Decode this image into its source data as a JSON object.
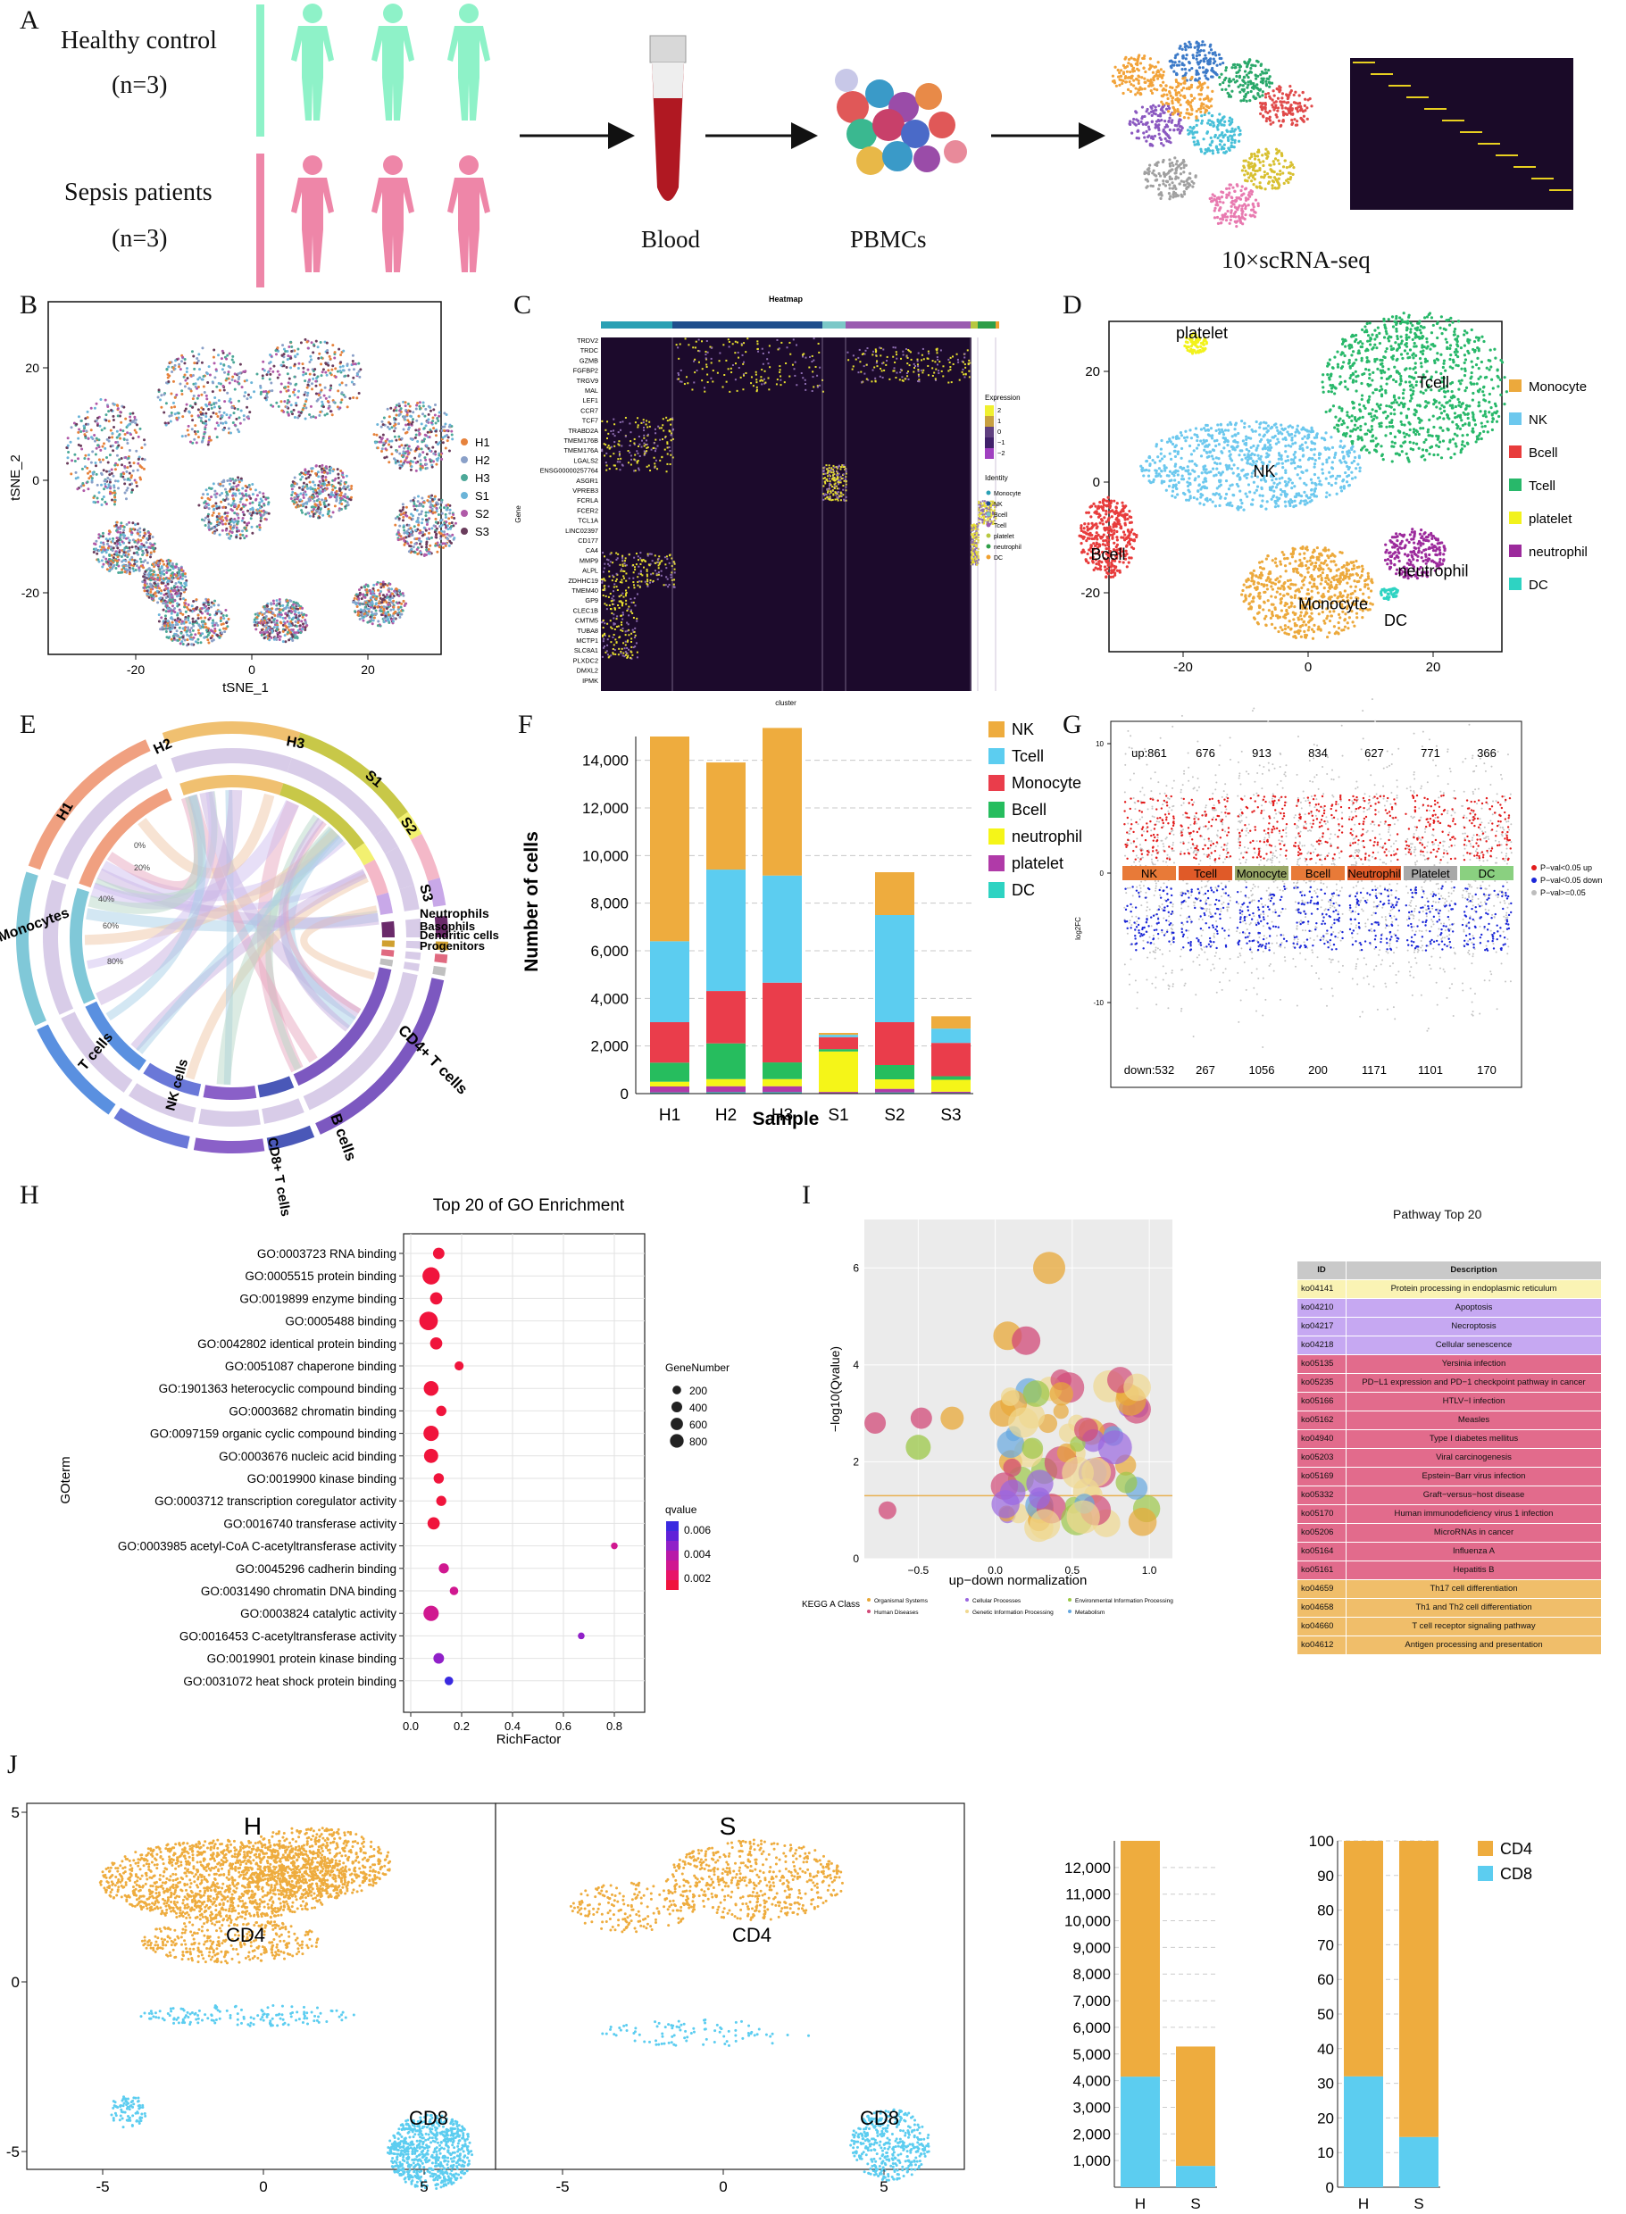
{
  "panels": {
    "A": "A",
    "B": "B",
    "C": "C",
    "D": "D",
    "E": "E",
    "F": "F",
    "G": "G",
    "H": "H",
    "I": "I",
    "J": "J"
  },
  "panelA": {
    "healthy_label": "Healthy control",
    "healthy_n": "(n=3)",
    "sepsis_label": "Sepsis patients",
    "sepsis_n": "(n=3)",
    "blood": "Blood",
    "pbmcs": "PBMCs",
    "scrna": "10×scRNA-seq",
    "colors": {
      "healthy": "#8ef2c8",
      "sepsis": "#ee86a8"
    }
  },
  "panelB": {
    "xlabel": "tSNE_1",
    "ylabel": "tSNE_2",
    "legend": [
      {
        "name": "H1",
        "color": "#e6823c"
      },
      {
        "name": "H2",
        "color": "#8aa0c8"
      },
      {
        "name": "H3",
        "color": "#4ca898"
      },
      {
        "name": "S1",
        "color": "#6bb4d8"
      },
      {
        "name": "S2",
        "color": "#b05aa8"
      },
      {
        "name": "S3",
        "color": "#6a3c5c"
      }
    ]
  },
  "panelC": {
    "title": "Heatmap",
    "xlabel": "cluster",
    "ylabel": "Gene",
    "genes": [
      "TRDV2",
      "TRDC",
      "GZMB",
      "FGFBP2",
      "TRGV9",
      "MAL",
      "LEF1",
      "CCR7",
      "TCF7",
      "TRABD2A",
      "TMEM176B",
      "TMEM176A",
      "LGALS2",
      "ENSG00000257764",
      "ASGR1",
      "VPREB3",
      "FCRLA",
      "FCER2",
      "TCL1A",
      "LINC02397",
      "CD177",
      "CA4",
      "MMP9",
      "ALPL",
      "ZDHHC19",
      "TMEM40",
      "GP9",
      "CLEC1B",
      "CMTM5",
      "TUBA8",
      "MCTP1",
      "SLC8A1",
      "PLXDC2",
      "DMXL2",
      "IPMK"
    ],
    "expression_label": "Expression",
    "expression_ticks": [
      "2",
      "1",
      "0",
      "−1",
      "−2"
    ],
    "identity_label": "Identity",
    "identity": [
      {
        "name": "Monocyte",
        "color": "#2aa0b4"
      },
      {
        "name": "NK",
        "color": "#1f4e8c"
      },
      {
        "name": "Bcell",
        "color": "#7cc8c8"
      },
      {
        "name": "Tcell",
        "color": "#9a5cb0"
      },
      {
        "name": "platelet",
        "color": "#b8c840"
      },
      {
        "name": "neutrophil",
        "color": "#2e9e48"
      },
      {
        "name": "DC",
        "color": "#f0a030"
      }
    ]
  },
  "panelD": {
    "legend": [
      {
        "name": "Monocyte",
        "color": "#eca93c"
      },
      {
        "name": "NK",
        "color": "#6cc8ee"
      },
      {
        "name": "Bcell",
        "color": "#e83c3c"
      },
      {
        "name": "Tcell",
        "color": "#28b86a"
      },
      {
        "name": "platelet",
        "color": "#f2f21c"
      },
      {
        "name": "neutrophil",
        "color": "#9c2a9c"
      },
      {
        "name": "DC",
        "color": "#2ed3c2"
      }
    ],
    "labels": {
      "platelet": "platelet",
      "tcell": "Tcell",
      "nk": "NK",
      "bcell": "Bcell",
      "monocyte": "Monocyte",
      "neutrophil": "neutrophil",
      "dc": "DC"
    }
  },
  "panelE": {
    "samples": [
      "H1",
      "H2",
      "H3",
      "S1",
      "S2",
      "S3"
    ],
    "cells": [
      "Neutrophils",
      "Basophils",
      "Dendritic cells",
      "Progenitors",
      "CD4+ T cells",
      "B cells",
      "CD8+ T cells",
      "NK cells",
      "T cells",
      "Monocytes"
    ],
    "pct_ticks": [
      "0%",
      "20%",
      "40%",
      "60%",
      "80%"
    ]
  },
  "chart_data": [
    {
      "panel": "B",
      "type": "scatter",
      "xlabel": "tSNE_1",
      "ylabel": "tSNE_2",
      "xticks": [
        -20,
        0,
        20
      ],
      "yticks": [
        20,
        0,
        -20
      ]
    },
    {
      "panel": "D",
      "type": "scatter",
      "xticks": [
        -20,
        0,
        20
      ],
      "yticks": [
        20,
        0,
        -20
      ]
    },
    {
      "panel": "F",
      "type": "bar",
      "stacked": true,
      "xlabel": "Sample",
      "ylabel": "Number of cells",
      "categories": [
        "H1",
        "H2",
        "H3",
        "S1",
        "S2",
        "S3"
      ],
      "ylim": [
        0,
        15000
      ],
      "yticks": [
        0,
        2000,
        4000,
        6000,
        8000,
        10000,
        12000,
        14000
      ],
      "ytick_labels": [
        "0",
        "2,000",
        "4,000",
        "6,000",
        "8,000",
        "10,000",
        "12,000",
        "14,000"
      ],
      "series": [
        {
          "name": "DC",
          "color": "#2ed3c2",
          "values": [
            50,
            60,
            60,
            20,
            50,
            30
          ]
        },
        {
          "name": "platelet",
          "color": "#b03aa8",
          "values": [
            250,
            250,
            250,
            50,
            150,
            50
          ]
        },
        {
          "name": "neutrophil",
          "color": "#f5f518",
          "values": [
            200,
            300,
            300,
            1700,
            400,
            500
          ]
        },
        {
          "name": "Bcell",
          "color": "#26bd5e",
          "values": [
            800,
            1500,
            700,
            100,
            600,
            150
          ]
        },
        {
          "name": "Monocyte",
          "color": "#ea3d4b",
          "values": [
            1700,
            2200,
            3350,
            500,
            1800,
            1400
          ]
        },
        {
          "name": "Tcell",
          "color": "#5ccdf0",
          "values": [
            3400,
            5100,
            4500,
            100,
            4500,
            600
          ]
        },
        {
          "name": "NK",
          "color": "#eeac3e",
          "values": [
            8600,
            4500,
            6200,
            80,
            1800,
            520
          ]
        }
      ],
      "legend_order": [
        "NK",
        "Tcell",
        "Monocyte",
        "Bcell",
        "neutrophil",
        "platelet",
        "DC"
      ]
    },
    {
      "panel": "G",
      "type": "scatter",
      "ylabel": "log2FC",
      "categories": [
        "NK",
        "Tcell",
        "Monocyte",
        "Bcell",
        "Neutrophil",
        "Platelet",
        "DC"
      ],
      "up": [
        861,
        676,
        913,
        834,
        627,
        771,
        366
      ],
      "down": [
        532,
        267,
        1056,
        200,
        1171,
        1101,
        170
      ],
      "up_labels": [
        "up:861",
        "676",
        "913",
        "834",
        "627",
        "771",
        "366"
      ],
      "down_labels": [
        "down:532",
        "267",
        "1056",
        "200",
        "1171",
        "1101",
        "170"
      ],
      "yticks": [
        10,
        0,
        -10
      ],
      "legend": [
        {
          "name": "P−val<0.05 up",
          "color": "#e21c1c"
        },
        {
          "name": "P−val<0.05 down",
          "color": "#1c28d8"
        },
        {
          "name": "P−val>=0.05",
          "color": "#bdbdbd"
        }
      ]
    },
    {
      "panel": "H",
      "type": "scatter",
      "title": "Top 20 of GO Enrichment",
      "xlabel": "RichFactor",
      "ylabel": "GOterm",
      "xlim": [
        0,
        0.85
      ],
      "xticks": [
        0.0,
        0.2,
        0.4,
        0.6,
        0.8
      ],
      "terms": [
        "GO:0003723 RNA binding",
        "GO:0005515 protein binding",
        "GO:0019899 enzyme binding",
        "GO:0005488 binding",
        "GO:0042802 identical protein binding",
        "GO:0051087 chaperone binding",
        "GO:1901363 heterocyclic compound binding",
        "GO:0003682 chromatin binding",
        "GO:0097159 organic cyclic compound binding",
        "GO:0003676 nucleic acid binding",
        "GO:0019900 kinase binding",
        "GO:0003712 transcription coregulator activity",
        "GO:0016740 transferase activity",
        "GO:0003985 acetyl-CoA C-acetyltransferase activity",
        "GO:0045296 cadherin binding",
        "GO:0031490 chromatin DNA binding",
        "GO:0003824 catalytic activity",
        "GO:0016453 C-acetyltransferase activity",
        "GO:0019901 protein kinase binding",
        "GO:0031072 heat shock protein binding"
      ],
      "richfactor": [
        0.11,
        0.08,
        0.1,
        0.07,
        0.1,
        0.19,
        0.08,
        0.12,
        0.08,
        0.08,
        0.11,
        0.12,
        0.09,
        0.8,
        0.13,
        0.17,
        0.08,
        0.67,
        0.11,
        0.15
      ],
      "genenumber": [
        250,
        750,
        300,
        900,
        300,
        120,
        500,
        180,
        550,
        450,
        180,
        170,
        300,
        40,
        170,
        100,
        550,
        40,
        200,
        100
      ],
      "qvalue": [
        0.001,
        0.001,
        0.001,
        0.001,
        0.001,
        0.002,
        0.001,
        0.002,
        0.001,
        0.001,
        0.002,
        0.002,
        0.002,
        0.004,
        0.003,
        0.003,
        0.003,
        0.005,
        0.006,
        0.007
      ],
      "size_legend_title": "GeneNumber",
      "size_legend": [
        200,
        400,
        600,
        800
      ],
      "color_legend_title": "qvalue",
      "color_legend": [
        "0.006",
        "0.004",
        "0.002"
      ]
    },
    {
      "panel": "I",
      "type": "scatter",
      "xlabel": "up−down normalization",
      "ylabel": "−log10(Qvalue)",
      "xticks": [
        "−0.5",
        "0.0",
        "0.5",
        "1.0"
      ],
      "yticks": [
        "0",
        "2",
        "4",
        "6"
      ],
      "threshold": 1.3,
      "legend_title": "KEGG A Class",
      "legend": [
        {
          "name": "Organismal Systems",
          "color": "#e8a838"
        },
        {
          "name": "Human Diseases",
          "color": "#d24a78"
        },
        {
          "name": "Cellular Processes",
          "color": "#9a66e0"
        },
        {
          "name": "Genetic Information Processing",
          "color": "#f0d890"
        },
        {
          "name": "Environmental Information Processing",
          "color": "#9cc848"
        },
        {
          "name": "Metabolism",
          "color": "#66a8e0"
        }
      ]
    },
    {
      "panel": "J-counts",
      "type": "bar",
      "stacked": true,
      "categories": [
        "H",
        "S"
      ],
      "ylim": [
        0,
        13000
      ],
      "yticks": [
        1000,
        2000,
        3000,
        4000,
        5000,
        6000,
        7000,
        8000,
        9000,
        10000,
        11000,
        12000
      ],
      "ytick_labels": [
        "1,000",
        "2,000",
        "3,000",
        "4,000",
        "5,000",
        "6,000",
        "7,000",
        "8,000",
        "9,000",
        "10,000",
        "11,000",
        "12,000"
      ],
      "series": [
        {
          "name": "CD8",
          "color": "#5ccdf0",
          "values": [
            4150,
            800
          ]
        },
        {
          "name": "CD4",
          "color": "#eeac3e",
          "values": [
            8850,
            4480
          ]
        }
      ]
    },
    {
      "panel": "J-percent",
      "type": "bar",
      "stacked": true,
      "categories": [
        "H",
        "S"
      ],
      "ylim": [
        0,
        100
      ],
      "yticks": [
        0,
        10,
        20,
        30,
        40,
        50,
        60,
        70,
        80,
        90,
        100
      ],
      "series": [
        {
          "name": "CD8",
          "color": "#5ccdf0",
          "values": [
            32,
            14.5
          ]
        },
        {
          "name": "CD4",
          "color": "#eeac3e",
          "values": [
            68,
            85.5
          ]
        }
      ]
    }
  ],
  "panelI": {
    "table_title": "Pathway Top 20",
    "head_id": "ID",
    "head_desc": "Description",
    "rows": [
      {
        "id": "ko04141",
        "desc": "Protein processing in endoplasmic reticulum",
        "color": "#faf3b4"
      },
      {
        "id": "ko04210",
        "desc": "Apoptosis",
        "color": "#c6a8f2"
      },
      {
        "id": "ko04217",
        "desc": "Necroptosis",
        "color": "#c6a8f2"
      },
      {
        "id": "ko04218",
        "desc": "Cellular senescence",
        "color": "#c6a8f2"
      },
      {
        "id": "ko05135",
        "desc": "Yersinia infection",
        "color": "#e26b8c"
      },
      {
        "id": "ko05235",
        "desc": "PD−L1 expression and PD−1 checkpoint pathway in cancer",
        "color": "#e26b8c"
      },
      {
        "id": "ko05166",
        "desc": "HTLV−I infection",
        "color": "#e26b8c"
      },
      {
        "id": "ko05162",
        "desc": "Measles",
        "color": "#e26b8c"
      },
      {
        "id": "ko04940",
        "desc": "Type I diabetes mellitus",
        "color": "#e26b8c"
      },
      {
        "id": "ko05203",
        "desc": "Viral carcinogenesis",
        "color": "#e26b8c"
      },
      {
        "id": "ko05169",
        "desc": "Epstein−Barr virus infection",
        "color": "#e26b8c"
      },
      {
        "id": "ko05332",
        "desc": "Graft−versus−host disease",
        "color": "#e26b8c"
      },
      {
        "id": "ko05170",
        "desc": "Human immunodeficiency virus 1 infection",
        "color": "#e26b8c"
      },
      {
        "id": "ko05206",
        "desc": "MicroRNAs in cancer",
        "color": "#e26b8c"
      },
      {
        "id": "ko05164",
        "desc": "Influenza A",
        "color": "#e26b8c"
      },
      {
        "id": "ko05161",
        "desc": "Hepatitis B",
        "color": "#e26b8c"
      },
      {
        "id": "ko04659",
        "desc": "Th17 cell differentiation",
        "color": "#f0be6a"
      },
      {
        "id": "ko04658",
        "desc": "Th1 and Th2 cell differentiation",
        "color": "#f0be6a"
      },
      {
        "id": "ko04660",
        "desc": "T cell receptor signaling pathway",
        "color": "#f0be6a"
      },
      {
        "id": "ko04612",
        "desc": "Antigen processing and presentation",
        "color": "#f0be6a"
      }
    ]
  },
  "panelJ": {
    "h_label": "H",
    "s_label": "S",
    "cd4": "CD4",
    "cd8": "CD8",
    "xticks": [
      "-5",
      "0",
      "5"
    ],
    "yticks": [
      "5",
      "0",
      "-5"
    ],
    "legend": [
      {
        "name": "CD4",
        "color": "#eeac3e"
      },
      {
        "name": "CD8",
        "color": "#5ccdf0"
      }
    ]
  }
}
